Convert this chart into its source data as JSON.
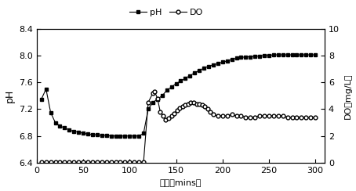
{
  "pH_x": [
    5,
    10,
    15,
    20,
    25,
    30,
    35,
    40,
    45,
    50,
    55,
    60,
    65,
    70,
    75,
    80,
    85,
    90,
    95,
    100,
    105,
    110,
    115,
    120,
    125,
    130,
    135,
    140,
    145,
    150,
    155,
    160,
    165,
    170,
    175,
    180,
    185,
    190,
    195,
    200,
    205,
    210,
    215,
    220,
    225,
    230,
    235,
    240,
    245,
    250,
    255,
    260,
    265,
    270,
    275,
    280,
    285,
    290,
    295,
    300
  ],
  "pH_y": [
    7.35,
    7.5,
    7.15,
    7.0,
    6.95,
    6.92,
    6.89,
    6.87,
    6.86,
    6.84,
    6.83,
    6.82,
    6.82,
    6.81,
    6.81,
    6.8,
    6.8,
    6.8,
    6.8,
    6.8,
    6.8,
    6.8,
    6.84,
    7.2,
    7.3,
    7.35,
    7.4,
    7.48,
    7.53,
    7.58,
    7.62,
    7.66,
    7.7,
    7.74,
    7.78,
    7.81,
    7.84,
    7.86,
    7.88,
    7.9,
    7.92,
    7.94,
    7.96,
    7.97,
    7.98,
    7.98,
    7.99,
    7.99,
    8.0,
    8.0,
    8.01,
    8.01,
    8.01,
    8.01,
    8.01,
    8.01,
    8.01,
    8.01,
    8.01,
    8.01
  ],
  "DO_x": [
    5,
    10,
    15,
    20,
    25,
    30,
    35,
    40,
    45,
    50,
    55,
    60,
    65,
    70,
    75,
    80,
    85,
    90,
    95,
    100,
    105,
    110,
    115,
    120,
    125,
    127,
    130,
    133,
    136,
    139,
    142,
    145,
    148,
    151,
    154,
    157,
    160,
    163,
    166,
    169,
    172,
    175,
    178,
    181,
    184,
    187,
    190,
    195,
    200,
    205,
    210,
    215,
    220,
    225,
    230,
    235,
    240,
    245,
    250,
    255,
    260,
    265,
    270,
    275,
    280,
    285,
    290,
    295,
    300
  ],
  "DO_y": [
    0.05,
    0.05,
    0.05,
    0.05,
    0.05,
    0.05,
    0.05,
    0.05,
    0.05,
    0.05,
    0.05,
    0.05,
    0.05,
    0.05,
    0.05,
    0.05,
    0.05,
    0.05,
    0.05,
    0.05,
    0.05,
    0.05,
    0.05,
    4.5,
    5.2,
    5.3,
    4.8,
    3.8,
    3.5,
    3.2,
    3.3,
    3.5,
    3.7,
    3.9,
    4.1,
    4.2,
    4.3,
    4.4,
    4.5,
    4.5,
    4.4,
    4.4,
    4.3,
    4.2,
    4.0,
    3.8,
    3.6,
    3.5,
    3.5,
    3.5,
    3.6,
    3.5,
    3.5,
    3.4,
    3.4,
    3.4,
    3.5,
    3.5,
    3.5,
    3.5,
    3.5,
    3.5,
    3.4,
    3.4,
    3.4,
    3.4,
    3.4,
    3.4,
    3.4
  ],
  "pH_ylim": [
    6.4,
    8.4
  ],
  "DO_ylim": [
    0,
    10
  ],
  "xlim": [
    0,
    310
  ],
  "pH_yticks": [
    6.4,
    6.8,
    7.2,
    7.6,
    8.0,
    8.4
  ],
  "DO_yticks": [
    0,
    2,
    4,
    6,
    8,
    10
  ],
  "xticks": [
    0,
    50,
    100,
    150,
    200,
    250,
    300
  ],
  "xlabel": "时间（mins）",
  "ylabel_left": "pH",
  "ylabel_right": "DO（mg/L）",
  "legend_pH": "pH",
  "legend_DO": "DO",
  "bg_color": "#ffffff",
  "plot_bg_color": "#ffffff",
  "line_color": "#000000",
  "pH_marker": "s",
  "DO_marker": "o",
  "marker_size": 3.5,
  "line_width": 0.8
}
